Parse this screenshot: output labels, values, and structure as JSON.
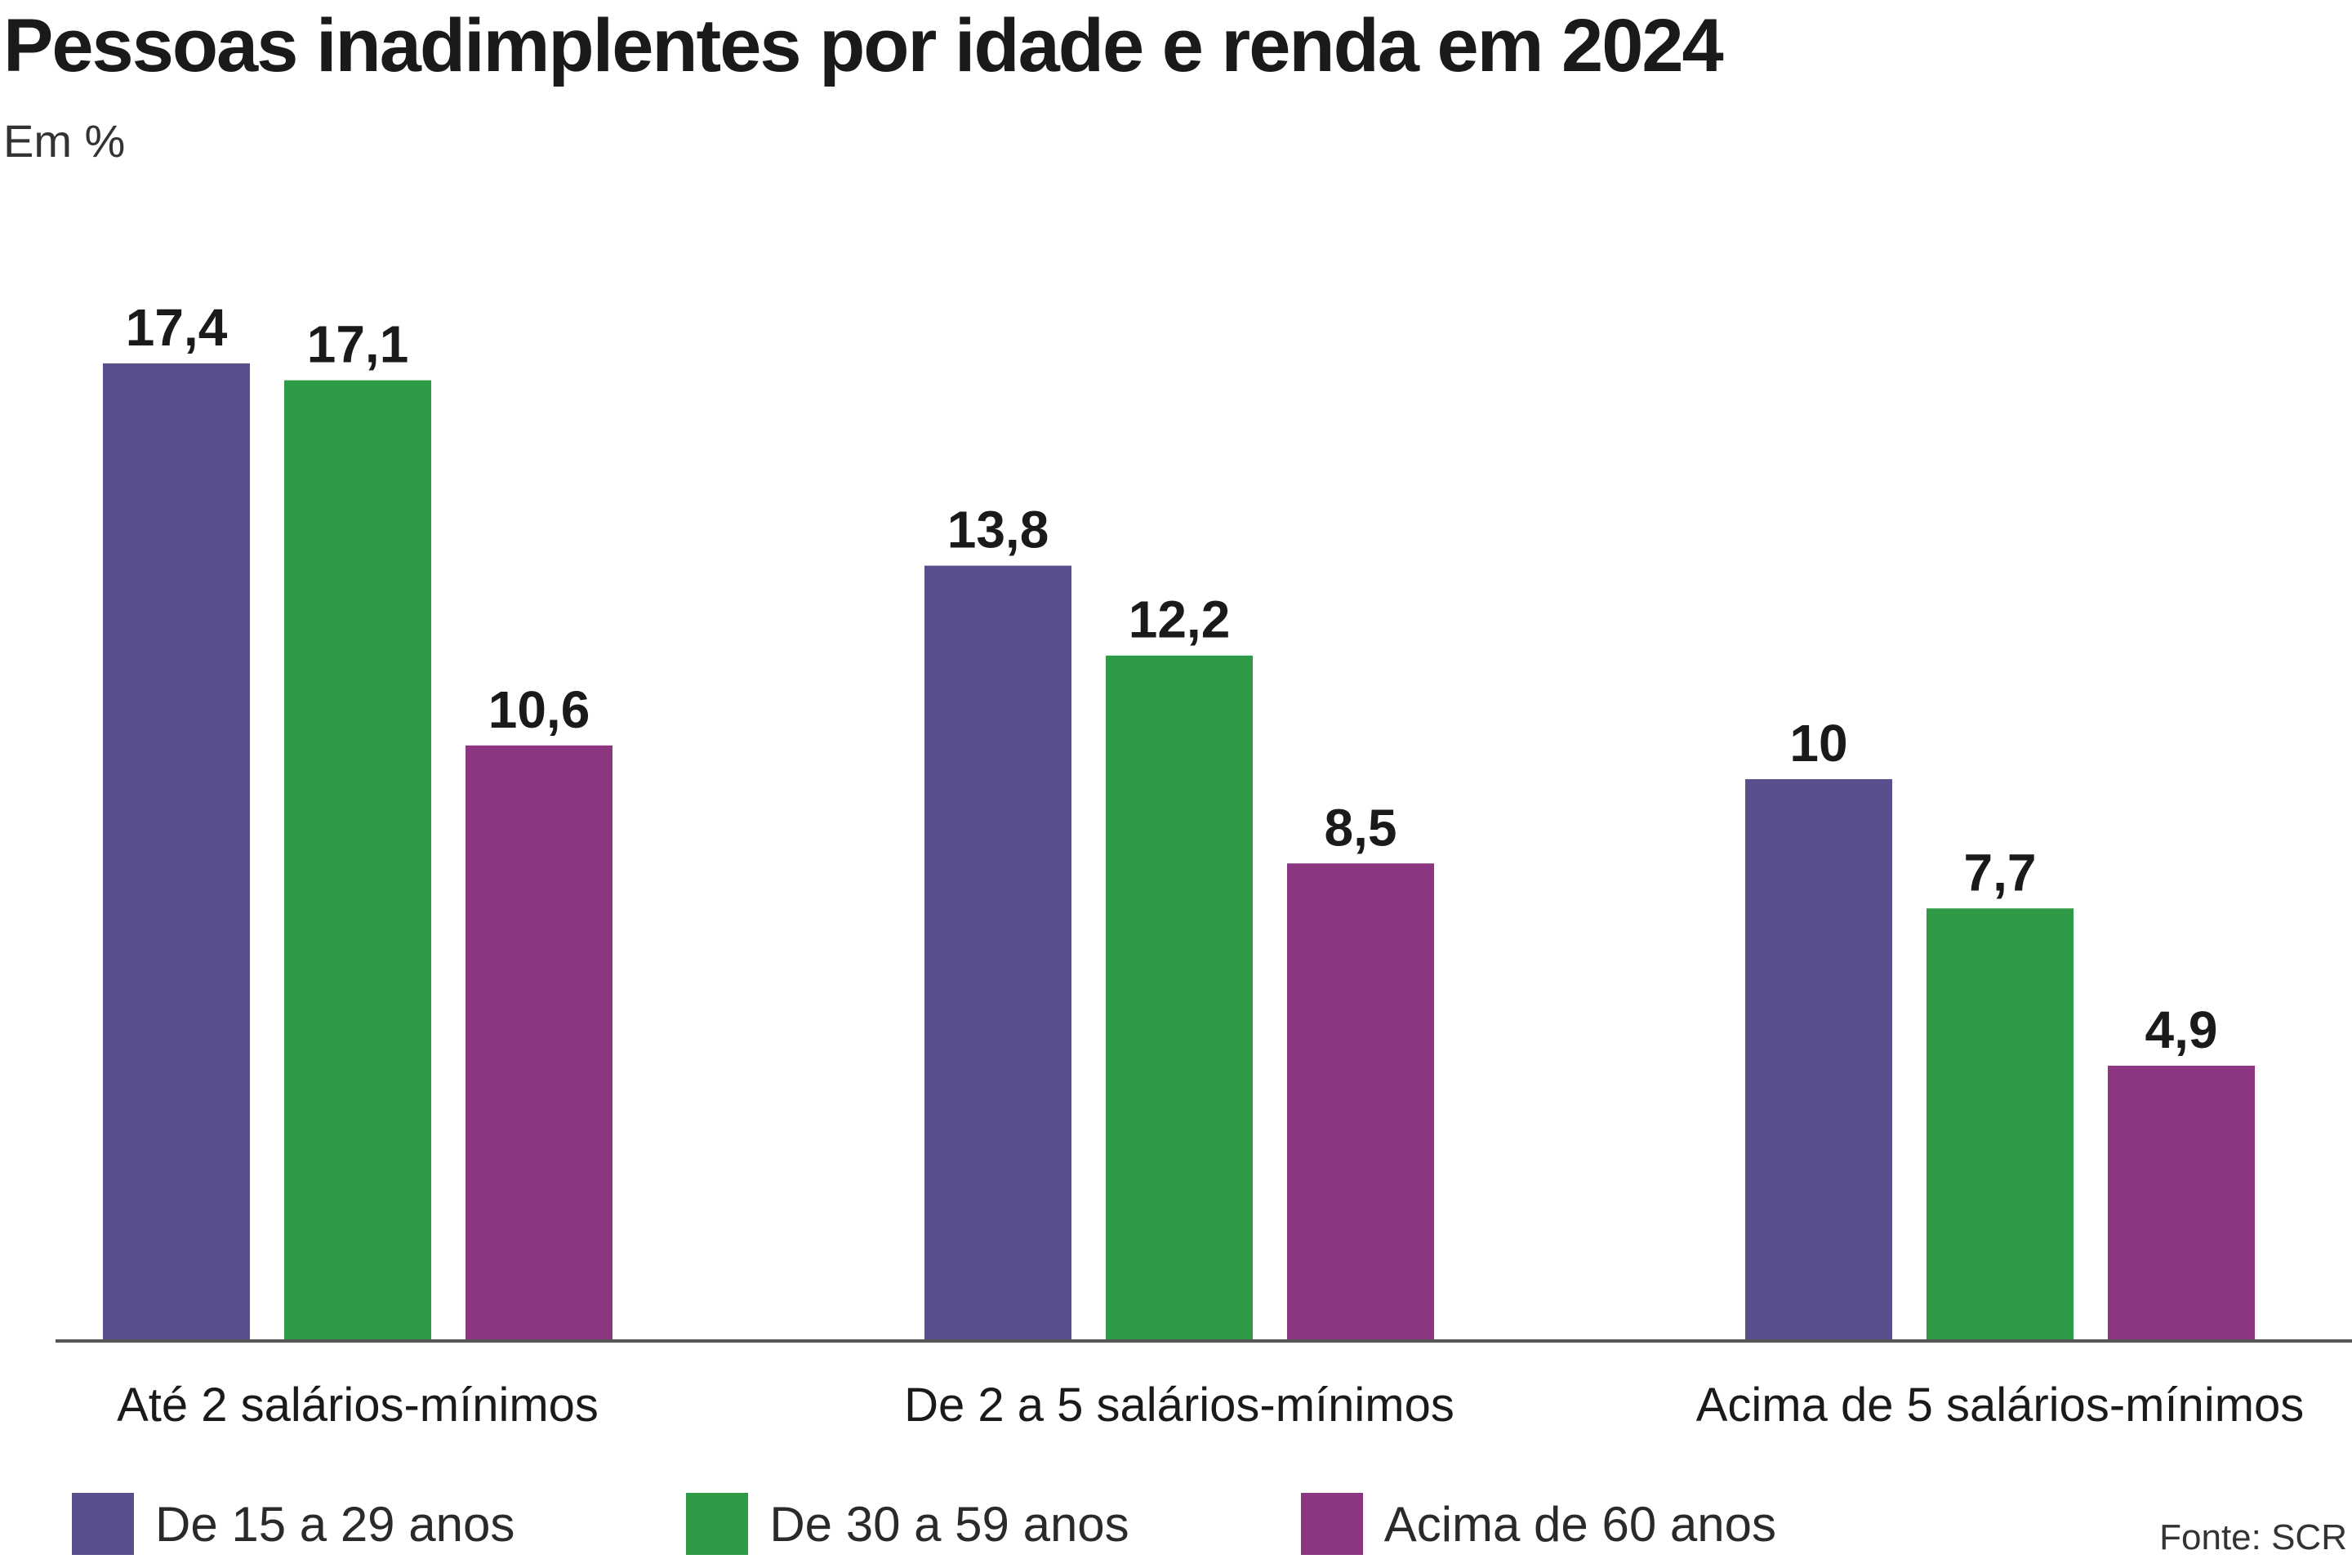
{
  "chart_data": {
    "type": "bar",
    "title": "Pessoas inadimplentes por idade e renda em 2024",
    "subtitle": "Em %",
    "categories": [
      "Até 2 salários-mínimos",
      "De 2 a 5 salários-mínimos",
      "Acima de 5 salários-mínimos"
    ],
    "series": [
      {
        "name": "De 15 a 29 anos",
        "color": "#58508d",
        "values": [
          17.4,
          13.8,
          10
        ],
        "labels": [
          "17,4",
          "13,8",
          "10"
        ]
      },
      {
        "name": "De 30 a 59 anos",
        "color": "#2e9a46",
        "values": [
          17.1,
          12.2,
          7.7
        ],
        "labels": [
          "17,1",
          "12,2",
          "7,7"
        ]
      },
      {
        "name": "Acima de 60 anos",
        "color": "#8c3580",
        "values": [
          10.6,
          8.5,
          4.9
        ],
        "labels": [
          "10,6",
          "8,5",
          "4,9"
        ]
      }
    ],
    "ylim": [
      0,
      17.4
    ],
    "grid": false,
    "legend_position": "bottom",
    "source": "Fonte: SCR"
  }
}
